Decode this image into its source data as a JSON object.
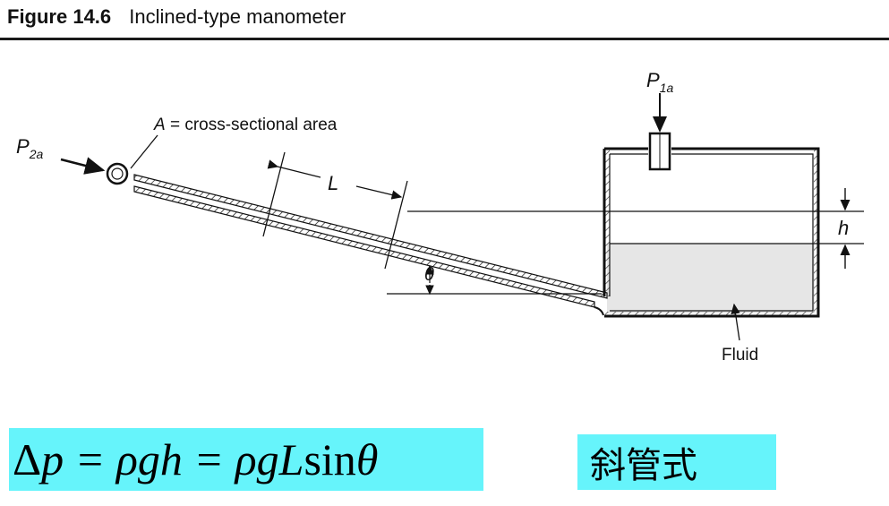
{
  "figure": {
    "number": "Figure 14.6",
    "title": "Inclined-type manometer"
  },
  "labels": {
    "area_symbol": "A",
    "area_text": " = cross-sectional area",
    "p1_main": "P",
    "p1_sub": "1a",
    "p2_main": "P",
    "p2_sub": "2a",
    "length": "L",
    "angle": "θ",
    "height": "h",
    "fluid": "Fluid"
  },
  "formula": {
    "delta": "Δ",
    "text": "p = ρgh = ρgL",
    "func": " sin ",
    "theta": "θ"
  },
  "type_label": "斜管式",
  "colors": {
    "highlight": "#66f4fb",
    "ink": "#111111",
    "fluid_fill": "#e6e6e6"
  }
}
